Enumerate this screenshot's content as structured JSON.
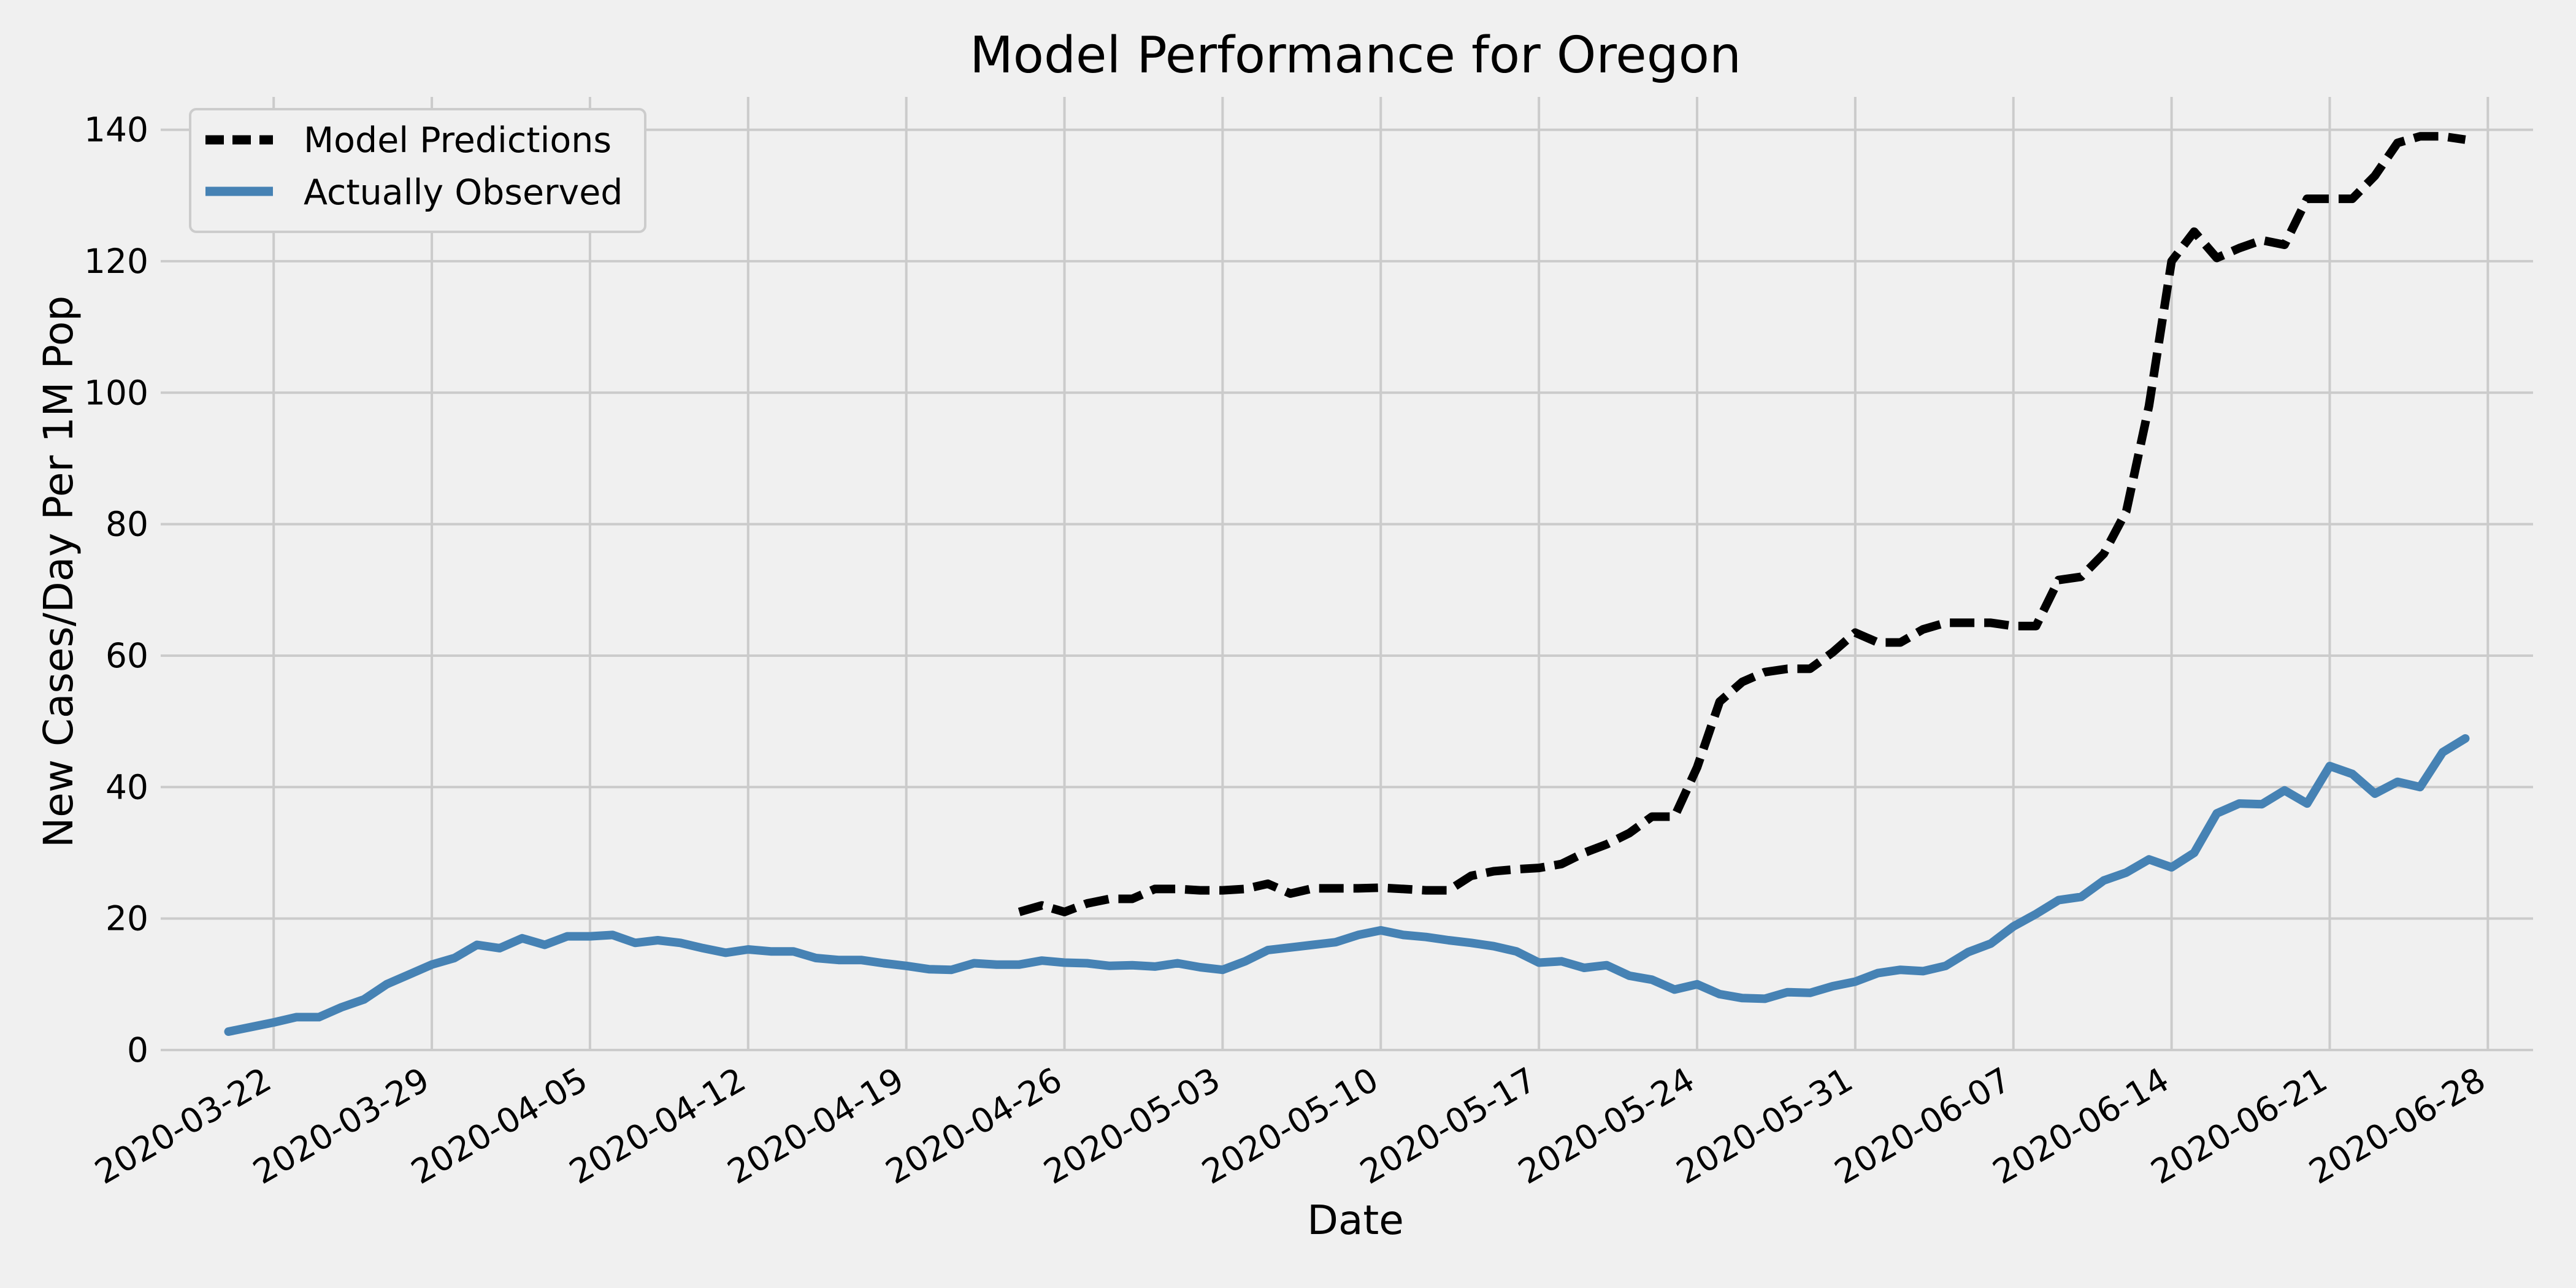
{
  "chart_data": {
    "type": "line",
    "title": "Model Performance for Oregon",
    "xlabel": "Date",
    "ylabel": "New Cases/Day Per 1M Pop",
    "x_range": [
      "2020-03-17",
      "2020-06-30"
    ],
    "ylim": [
      0,
      145
    ],
    "x_ticks": [
      "2020-03-22",
      "2020-03-29",
      "2020-04-05",
      "2020-04-12",
      "2020-04-19",
      "2020-04-26",
      "2020-05-03",
      "2020-05-10",
      "2020-05-17",
      "2020-05-24",
      "2020-05-31",
      "2020-06-07",
      "2020-06-14",
      "2020-06-21",
      "2020-06-28"
    ],
    "y_ticks": [
      "0",
      "20",
      "40",
      "60",
      "80",
      "100",
      "120",
      "140"
    ],
    "grid": true,
    "legend_position": "top-left",
    "series": [
      {
        "name": "Model Predictions",
        "color": "#000000",
        "style": "dashed",
        "x": [
          "2020-04-24",
          "2020-04-25",
          "2020-04-26",
          "2020-04-27",
          "2020-04-28",
          "2020-04-29",
          "2020-04-30",
          "2020-05-01",
          "2020-05-02",
          "2020-05-03",
          "2020-05-04",
          "2020-05-05",
          "2020-05-06",
          "2020-05-07",
          "2020-05-08",
          "2020-05-09",
          "2020-05-10",
          "2020-05-11",
          "2020-05-12",
          "2020-05-13",
          "2020-05-14",
          "2020-05-15",
          "2020-05-16",
          "2020-05-17",
          "2020-05-18",
          "2020-05-19",
          "2020-05-20",
          "2020-05-21",
          "2020-05-22",
          "2020-05-23",
          "2020-05-24",
          "2020-05-25",
          "2020-05-26",
          "2020-05-27",
          "2020-05-28",
          "2020-05-29",
          "2020-05-30",
          "2020-05-31",
          "2020-06-01",
          "2020-06-02",
          "2020-06-03",
          "2020-06-04",
          "2020-06-05",
          "2020-06-06",
          "2020-06-07",
          "2020-06-08",
          "2020-06-09",
          "2020-06-10",
          "2020-06-11",
          "2020-06-12",
          "2020-06-13",
          "2020-06-14",
          "2020-06-15",
          "2020-06-16",
          "2020-06-17",
          "2020-06-18",
          "2020-06-19",
          "2020-06-20",
          "2020-06-21",
          "2020-06-22",
          "2020-06-23",
          "2020-06-24",
          "2020-06-25",
          "2020-06-26",
          "2020-06-27"
        ],
        "values": [
          21,
          22,
          21,
          22.3,
          23,
          23,
          24.5,
          24.5,
          24.3,
          24.3,
          24.5,
          25.3,
          23.8,
          24.6,
          24.6,
          24.6,
          24.7,
          24.5,
          24.3,
          24.3,
          26.5,
          27.2,
          27.5,
          27.7,
          28.3,
          30,
          31.3,
          33,
          35.5,
          35.5,
          43,
          53,
          56,
          57.5,
          58,
          58,
          60.5,
          63.5,
          62,
          62,
          64,
          65,
          65,
          65,
          64.5,
          64.5,
          71.5,
          72,
          75.5,
          82,
          98,
          120,
          124.5,
          120.5,
          122,
          123.2,
          122.5,
          129.5,
          129.5,
          129.5,
          133,
          138,
          139,
          139,
          138.5
        ]
      },
      {
        "name": "Actually Observed",
        "color": "#4682b4",
        "style": "solid",
        "x": [
          "2020-03-20",
          "2020-03-21",
          "2020-03-22",
          "2020-03-23",
          "2020-03-24",
          "2020-03-25",
          "2020-03-26",
          "2020-03-27",
          "2020-03-28",
          "2020-03-29",
          "2020-03-30",
          "2020-03-31",
          "2020-04-01",
          "2020-04-02",
          "2020-04-03",
          "2020-04-04",
          "2020-04-05",
          "2020-04-06",
          "2020-04-07",
          "2020-04-08",
          "2020-04-09",
          "2020-04-10",
          "2020-04-11",
          "2020-04-12",
          "2020-04-13",
          "2020-04-14",
          "2020-04-15",
          "2020-04-16",
          "2020-04-17",
          "2020-04-18",
          "2020-04-19",
          "2020-04-20",
          "2020-04-21",
          "2020-04-22",
          "2020-04-23",
          "2020-04-24",
          "2020-04-25",
          "2020-04-26",
          "2020-04-27",
          "2020-04-28",
          "2020-04-29",
          "2020-04-30",
          "2020-05-01",
          "2020-05-02",
          "2020-05-03",
          "2020-05-04",
          "2020-05-05",
          "2020-05-06",
          "2020-05-07",
          "2020-05-08",
          "2020-05-09",
          "2020-05-10",
          "2020-05-11",
          "2020-05-12",
          "2020-05-13",
          "2020-05-14",
          "2020-05-15",
          "2020-05-16",
          "2020-05-17",
          "2020-05-18",
          "2020-05-19",
          "2020-05-20",
          "2020-05-21",
          "2020-05-22",
          "2020-05-23",
          "2020-05-24",
          "2020-05-25",
          "2020-05-26",
          "2020-05-27",
          "2020-05-28",
          "2020-05-29",
          "2020-05-30",
          "2020-05-31",
          "2020-06-01",
          "2020-06-02",
          "2020-06-03",
          "2020-06-04",
          "2020-06-05",
          "2020-06-06",
          "2020-06-07",
          "2020-06-08",
          "2020-06-09",
          "2020-06-10",
          "2020-06-11",
          "2020-06-12",
          "2020-06-13",
          "2020-06-14",
          "2020-06-15",
          "2020-06-16",
          "2020-06-17",
          "2020-06-18",
          "2020-06-19",
          "2020-06-20",
          "2020-06-21",
          "2020-06-22",
          "2020-06-23",
          "2020-06-24",
          "2020-06-25",
          "2020-06-26",
          "2020-06-27"
        ],
        "values": [
          2.8,
          3.5,
          4.2,
          5,
          5,
          6.5,
          7.7,
          10,
          11.5,
          13,
          14,
          16,
          15.5,
          17,
          16,
          17.3,
          17.3,
          17.5,
          16.3,
          16.7,
          16.3,
          15.5,
          14.8,
          15.3,
          15,
          15,
          14,
          13.7,
          13.7,
          13.2,
          12.8,
          12.3,
          12.2,
          13.2,
          13,
          13,
          13.6,
          13.3,
          13.2,
          12.8,
          12.9,
          12.7,
          13.2,
          12.6,
          12.2,
          13.5,
          15.2,
          15.6,
          16,
          16.4,
          17.5,
          18.2,
          17.5,
          17.2,
          16.7,
          16.3,
          15.8,
          15,
          13.3,
          13.5,
          12.5,
          12.9,
          11.3,
          10.7,
          9.2,
          10,
          8.5,
          7.9,
          7.8,
          8.8,
          8.7,
          9.7,
          10.4,
          11.7,
          12.2,
          12,
          12.8,
          14.9,
          16.2,
          18.8,
          20.7,
          22.8,
          23.3,
          25.8,
          27,
          29,
          27.8,
          30,
          36,
          37.5,
          37.4,
          39.5,
          37.5,
          43.2,
          42,
          39,
          40.8,
          40,
          45.3,
          47.4
        ]
      }
    ]
  }
}
